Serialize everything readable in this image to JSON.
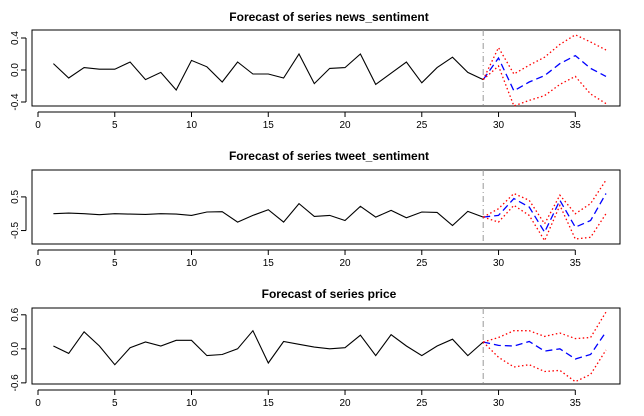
{
  "chart_data": [
    {
      "type": "line",
      "title": "Forecast of series news_sentiment",
      "xlim": [
        0,
        37
      ],
      "ylim": [
        -0.45,
        0.5
      ],
      "xticks": [
        0,
        5,
        10,
        15,
        20,
        25,
        30,
        35
      ],
      "yticks": [
        -0.4,
        0.0,
        0.4
      ],
      "ytick_labels": [
        "-0.4",
        "0.0",
        "0.4"
      ],
      "forecast_origin": 29,
      "series": [
        {
          "values": [
            [
              1,
              0.08
            ],
            [
              2,
              -0.1
            ],
            [
              3,
              0.03
            ],
            [
              4,
              0.01
            ],
            [
              5,
              0.01
            ],
            [
              6,
              0.1
            ],
            [
              7,
              -0.12
            ],
            [
              8,
              -0.03
            ],
            [
              9,
              -0.25
            ],
            [
              10,
              0.12
            ],
            [
              11,
              0.04
            ],
            [
              12,
              -0.15
            ],
            [
              13,
              0.1
            ],
            [
              14,
              -0.05
            ],
            [
              15,
              -0.05
            ],
            [
              16,
              -0.1
            ],
            [
              17,
              0.2
            ],
            [
              18,
              -0.17
            ],
            [
              19,
              0.02
            ],
            [
              20,
              0.03
            ],
            [
              21,
              0.2
            ],
            [
              22,
              -0.18
            ],
            [
              23,
              -0.04
            ],
            [
              24,
              0.1
            ],
            [
              25,
              -0.16
            ],
            [
              26,
              0.03
            ],
            [
              27,
              0.16
            ],
            [
              28,
              -0.03
            ],
            [
              29,
              -0.12
            ]
          ],
          "color": "#000000",
          "style": "solid"
        },
        {
          "values": [
            [
              29,
              -0.12
            ],
            [
              30,
              0.15
            ],
            [
              31,
              -0.26
            ],
            [
              32,
              -0.15
            ],
            [
              33,
              -0.07
            ],
            [
              34,
              0.08
            ],
            [
              35,
              0.18
            ],
            [
              36,
              0.02
            ],
            [
              37,
              -0.08
            ]
          ],
          "color": "#0000ff",
          "style": "dashed"
        },
        {
          "values": [
            [
              29,
              -0.12
            ],
            [
              30,
              0.28
            ],
            [
              31,
              -0.05
            ],
            [
              32,
              0.06
            ],
            [
              33,
              0.16
            ],
            [
              34,
              0.32
            ],
            [
              35,
              0.44
            ],
            [
              36,
              0.35
            ],
            [
              37,
              0.25
            ]
          ],
          "color": "#ff0000",
          "style": "dotted"
        },
        {
          "values": [
            [
              29,
              -0.12
            ],
            [
              30,
              0.05
            ],
            [
              31,
              -0.45
            ],
            [
              32,
              -0.38
            ],
            [
              33,
              -0.32
            ],
            [
              34,
              -0.18
            ],
            [
              35,
              -0.08
            ],
            [
              36,
              -0.3
            ],
            [
              37,
              -0.42
            ]
          ],
          "color": "#ff0000",
          "style": "dotted"
        }
      ]
    },
    {
      "type": "line",
      "title": "Forecast of series tweet_sentiment",
      "xlim": [
        0,
        37
      ],
      "ylim": [
        -0.9,
        1.3
      ],
      "xticks": [
        0,
        5,
        10,
        15,
        20,
        25,
        30,
        35
      ],
      "yticks": [
        -0.5,
        0.5
      ],
      "ytick_labels": [
        "-0.5",
        "0.5"
      ],
      "forecast_origin": 29,
      "series": [
        {
          "values": [
            [
              1,
              0.0
            ],
            [
              2,
              0.02
            ],
            [
              3,
              0.0
            ],
            [
              4,
              -0.03
            ],
            [
              5,
              0.0
            ],
            [
              6,
              -0.01
            ],
            [
              7,
              -0.02
            ],
            [
              8,
              0.0
            ],
            [
              9,
              -0.01
            ],
            [
              10,
              -0.05
            ],
            [
              11,
              0.05
            ],
            [
              12,
              0.06
            ],
            [
              13,
              -0.25
            ],
            [
              14,
              -0.05
            ],
            [
              15,
              0.12
            ],
            [
              16,
              -0.25
            ],
            [
              17,
              0.3
            ],
            [
              18,
              -0.08
            ],
            [
              19,
              -0.05
            ],
            [
              20,
              -0.2
            ],
            [
              21,
              0.22
            ],
            [
              22,
              -0.1
            ],
            [
              23,
              0.1
            ],
            [
              24,
              -0.12
            ],
            [
              25,
              0.05
            ],
            [
              26,
              0.04
            ],
            [
              27,
              -0.35
            ],
            [
              28,
              0.07
            ],
            [
              29,
              -0.1
            ]
          ],
          "color": "#000000",
          "style": "solid"
        },
        {
          "values": [
            [
              29,
              -0.1
            ],
            [
              30,
              -0.05
            ],
            [
              31,
              0.45
            ],
            [
              32,
              0.2
            ],
            [
              33,
              -0.55
            ],
            [
              34,
              0.4
            ],
            [
              35,
              -0.4
            ],
            [
              36,
              -0.2
            ],
            [
              37,
              0.6
            ]
          ],
          "color": "#0000ff",
          "style": "dashed"
        },
        {
          "values": [
            [
              29,
              -0.1
            ],
            [
              30,
              0.15
            ],
            [
              31,
              0.6
            ],
            [
              32,
              0.4
            ],
            [
              33,
              -0.3
            ],
            [
              34,
              0.55
            ],
            [
              35,
              0.0
            ],
            [
              36,
              0.3
            ],
            [
              37,
              1.0
            ]
          ],
          "color": "#ff0000",
          "style": "dotted"
        },
        {
          "values": [
            [
              29,
              -0.1
            ],
            [
              30,
              -0.25
            ],
            [
              31,
              0.25
            ],
            [
              32,
              -0.05
            ],
            [
              33,
              -0.8
            ],
            [
              34,
              0.25
            ],
            [
              35,
              -0.75
            ],
            [
              36,
              -0.7
            ],
            [
              37,
              0.0
            ]
          ],
          "color": "#ff0000",
          "style": "dotted"
        }
      ]
    },
    {
      "type": "line",
      "title": "Forecast of series price",
      "xlim": [
        0,
        37
      ],
      "ylim": [
        -0.62,
        0.72
      ],
      "xticks": [
        0,
        5,
        10,
        15,
        20,
        25,
        30,
        35
      ],
      "yticks": [
        -0.6,
        0.0,
        0.6
      ],
      "ytick_labels": [
        "-0.6",
        "0.0",
        "0.6"
      ],
      "forecast_origin": 29,
      "series": [
        {
          "values": [
            [
              1,
              0.05
            ],
            [
              2,
              -0.08
            ],
            [
              3,
              0.3
            ],
            [
              4,
              0.05
            ],
            [
              5,
              -0.28
            ],
            [
              6,
              0.02
            ],
            [
              7,
              0.12
            ],
            [
              8,
              0.05
            ],
            [
              9,
              0.15
            ],
            [
              10,
              0.15
            ],
            [
              11,
              -0.12
            ],
            [
              12,
              -0.1
            ],
            [
              13,
              0.0
            ],
            [
              14,
              0.32
            ],
            [
              15,
              -0.25
            ],
            [
              16,
              0.13
            ],
            [
              17,
              0.08
            ],
            [
              18,
              0.03
            ],
            [
              19,
              0.0
            ],
            [
              20,
              0.02
            ],
            [
              21,
              0.24
            ],
            [
              22,
              -0.12
            ],
            [
              23,
              0.25
            ],
            [
              24,
              0.05
            ],
            [
              25,
              -0.12
            ],
            [
              26,
              0.05
            ],
            [
              27,
              0.17
            ],
            [
              28,
              -0.12
            ],
            [
              29,
              0.12
            ]
          ],
          "color": "#000000",
          "style": "solid"
        },
        {
          "values": [
            [
              29,
              0.12
            ],
            [
              30,
              0.06
            ],
            [
              31,
              0.05
            ],
            [
              32,
              0.13
            ],
            [
              33,
              -0.04
            ],
            [
              34,
              0.0
            ],
            [
              35,
              -0.18
            ],
            [
              36,
              -0.1
            ],
            [
              37,
              0.3
            ]
          ],
          "color": "#0000ff",
          "style": "dashed"
        },
        {
          "values": [
            [
              29,
              0.12
            ],
            [
              30,
              0.2
            ],
            [
              31,
              0.32
            ],
            [
              32,
              0.32
            ],
            [
              33,
              0.22
            ],
            [
              34,
              0.28
            ],
            [
              35,
              0.18
            ],
            [
              36,
              0.2
            ],
            [
              37,
              0.65
            ]
          ],
          "color": "#ff0000",
          "style": "dotted"
        },
        {
          "values": [
            [
              29,
              0.12
            ],
            [
              30,
              -0.15
            ],
            [
              31,
              -0.32
            ],
            [
              32,
              -0.28
            ],
            [
              33,
              -0.4
            ],
            [
              34,
              -0.38
            ],
            [
              35,
              -0.58
            ],
            [
              36,
              -0.45
            ],
            [
              37,
              -0.02
            ]
          ],
          "color": "#ff0000",
          "style": "dotted"
        }
      ]
    }
  ]
}
